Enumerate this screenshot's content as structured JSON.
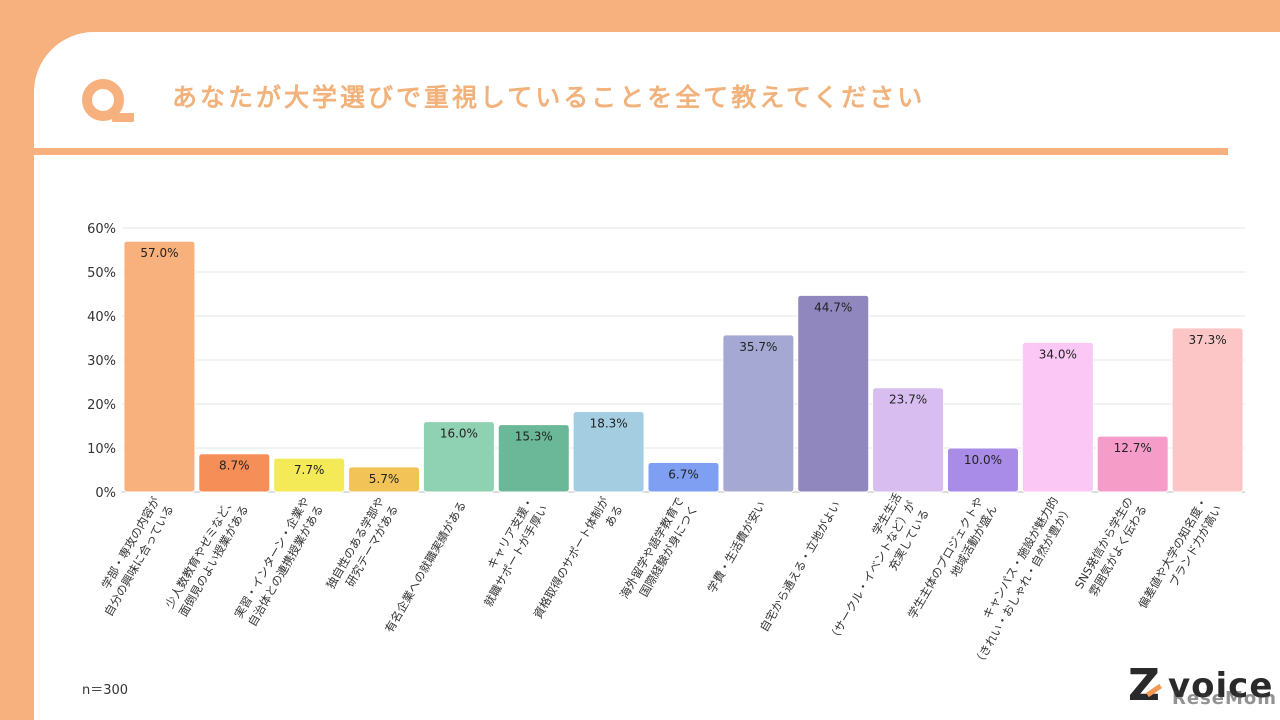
{
  "header": {
    "title": "あなたが大学選びで重視していることを全て教えてください"
  },
  "note": "n＝300",
  "logo": {
    "mark": "Z",
    "text": "voice",
    "watermark": "ReseMom"
  },
  "colors": {
    "accent": "#F7B17E",
    "title": "#F2B27C"
  },
  "chart_data": {
    "type": "bar",
    "ylim": [
      0,
      60
    ],
    "yticks": [
      "0%",
      "10%",
      "20%",
      "30%",
      "40%",
      "50%",
      "60%"
    ],
    "grid": true,
    "categories": [
      "学部・専攻の内容が\n自分の興味に合っている",
      "少人数教育やゼミなど、\n面倒見のよい授業がある",
      "実習・インターン・企業や\n自治体との連携授業がある",
      "独自性のある学部や\n研究テーマがある",
      "有名企業への就職実績がある",
      "キャリア支援・\n就職サポートが手厚い",
      "資格取得のサポート体制が\nある",
      "海外留学や語学教育で\n国際経験が身につく",
      "学費・生活費が安い",
      "自宅から通える・立地がよい",
      "学生生活\n（サークル・イベントなど）が\n充実している",
      "学生主体のプロジェクトや\n地域活動が盛ん",
      "キャンパス・施設が魅力的\n（きれい・おしゃれ・自然が豊か）",
      "SNS発信から学生の\n雰囲気がよく伝わる",
      "偏差値や大学の知名度・\nブランド力が高い"
    ],
    "values": [
      57.0,
      8.7,
      7.7,
      5.7,
      16.0,
      15.3,
      18.3,
      6.7,
      35.7,
      44.7,
      23.7,
      10.0,
      34.0,
      12.7,
      37.3
    ],
    "labels": [
      "57.0%",
      "8.7%",
      "7.7%",
      "5.7%",
      "16.0%",
      "15.3%",
      "18.3%",
      "6.7%",
      "35.7%",
      "44.7%",
      "23.7%",
      "10.0%",
      "34.0%",
      "12.7%",
      "37.3%"
    ],
    "colors": [
      "#F8B07D",
      "#F58E57",
      "#F4EA57",
      "#F2C457",
      "#8FD2B3",
      "#6AB897",
      "#A5CDE2",
      "#7E9FF2",
      "#A5A8D2",
      "#8F87BD",
      "#D8BEF0",
      "#A98CE8",
      "#FBC7F5",
      "#F59CC8",
      "#FCC6C6"
    ]
  }
}
